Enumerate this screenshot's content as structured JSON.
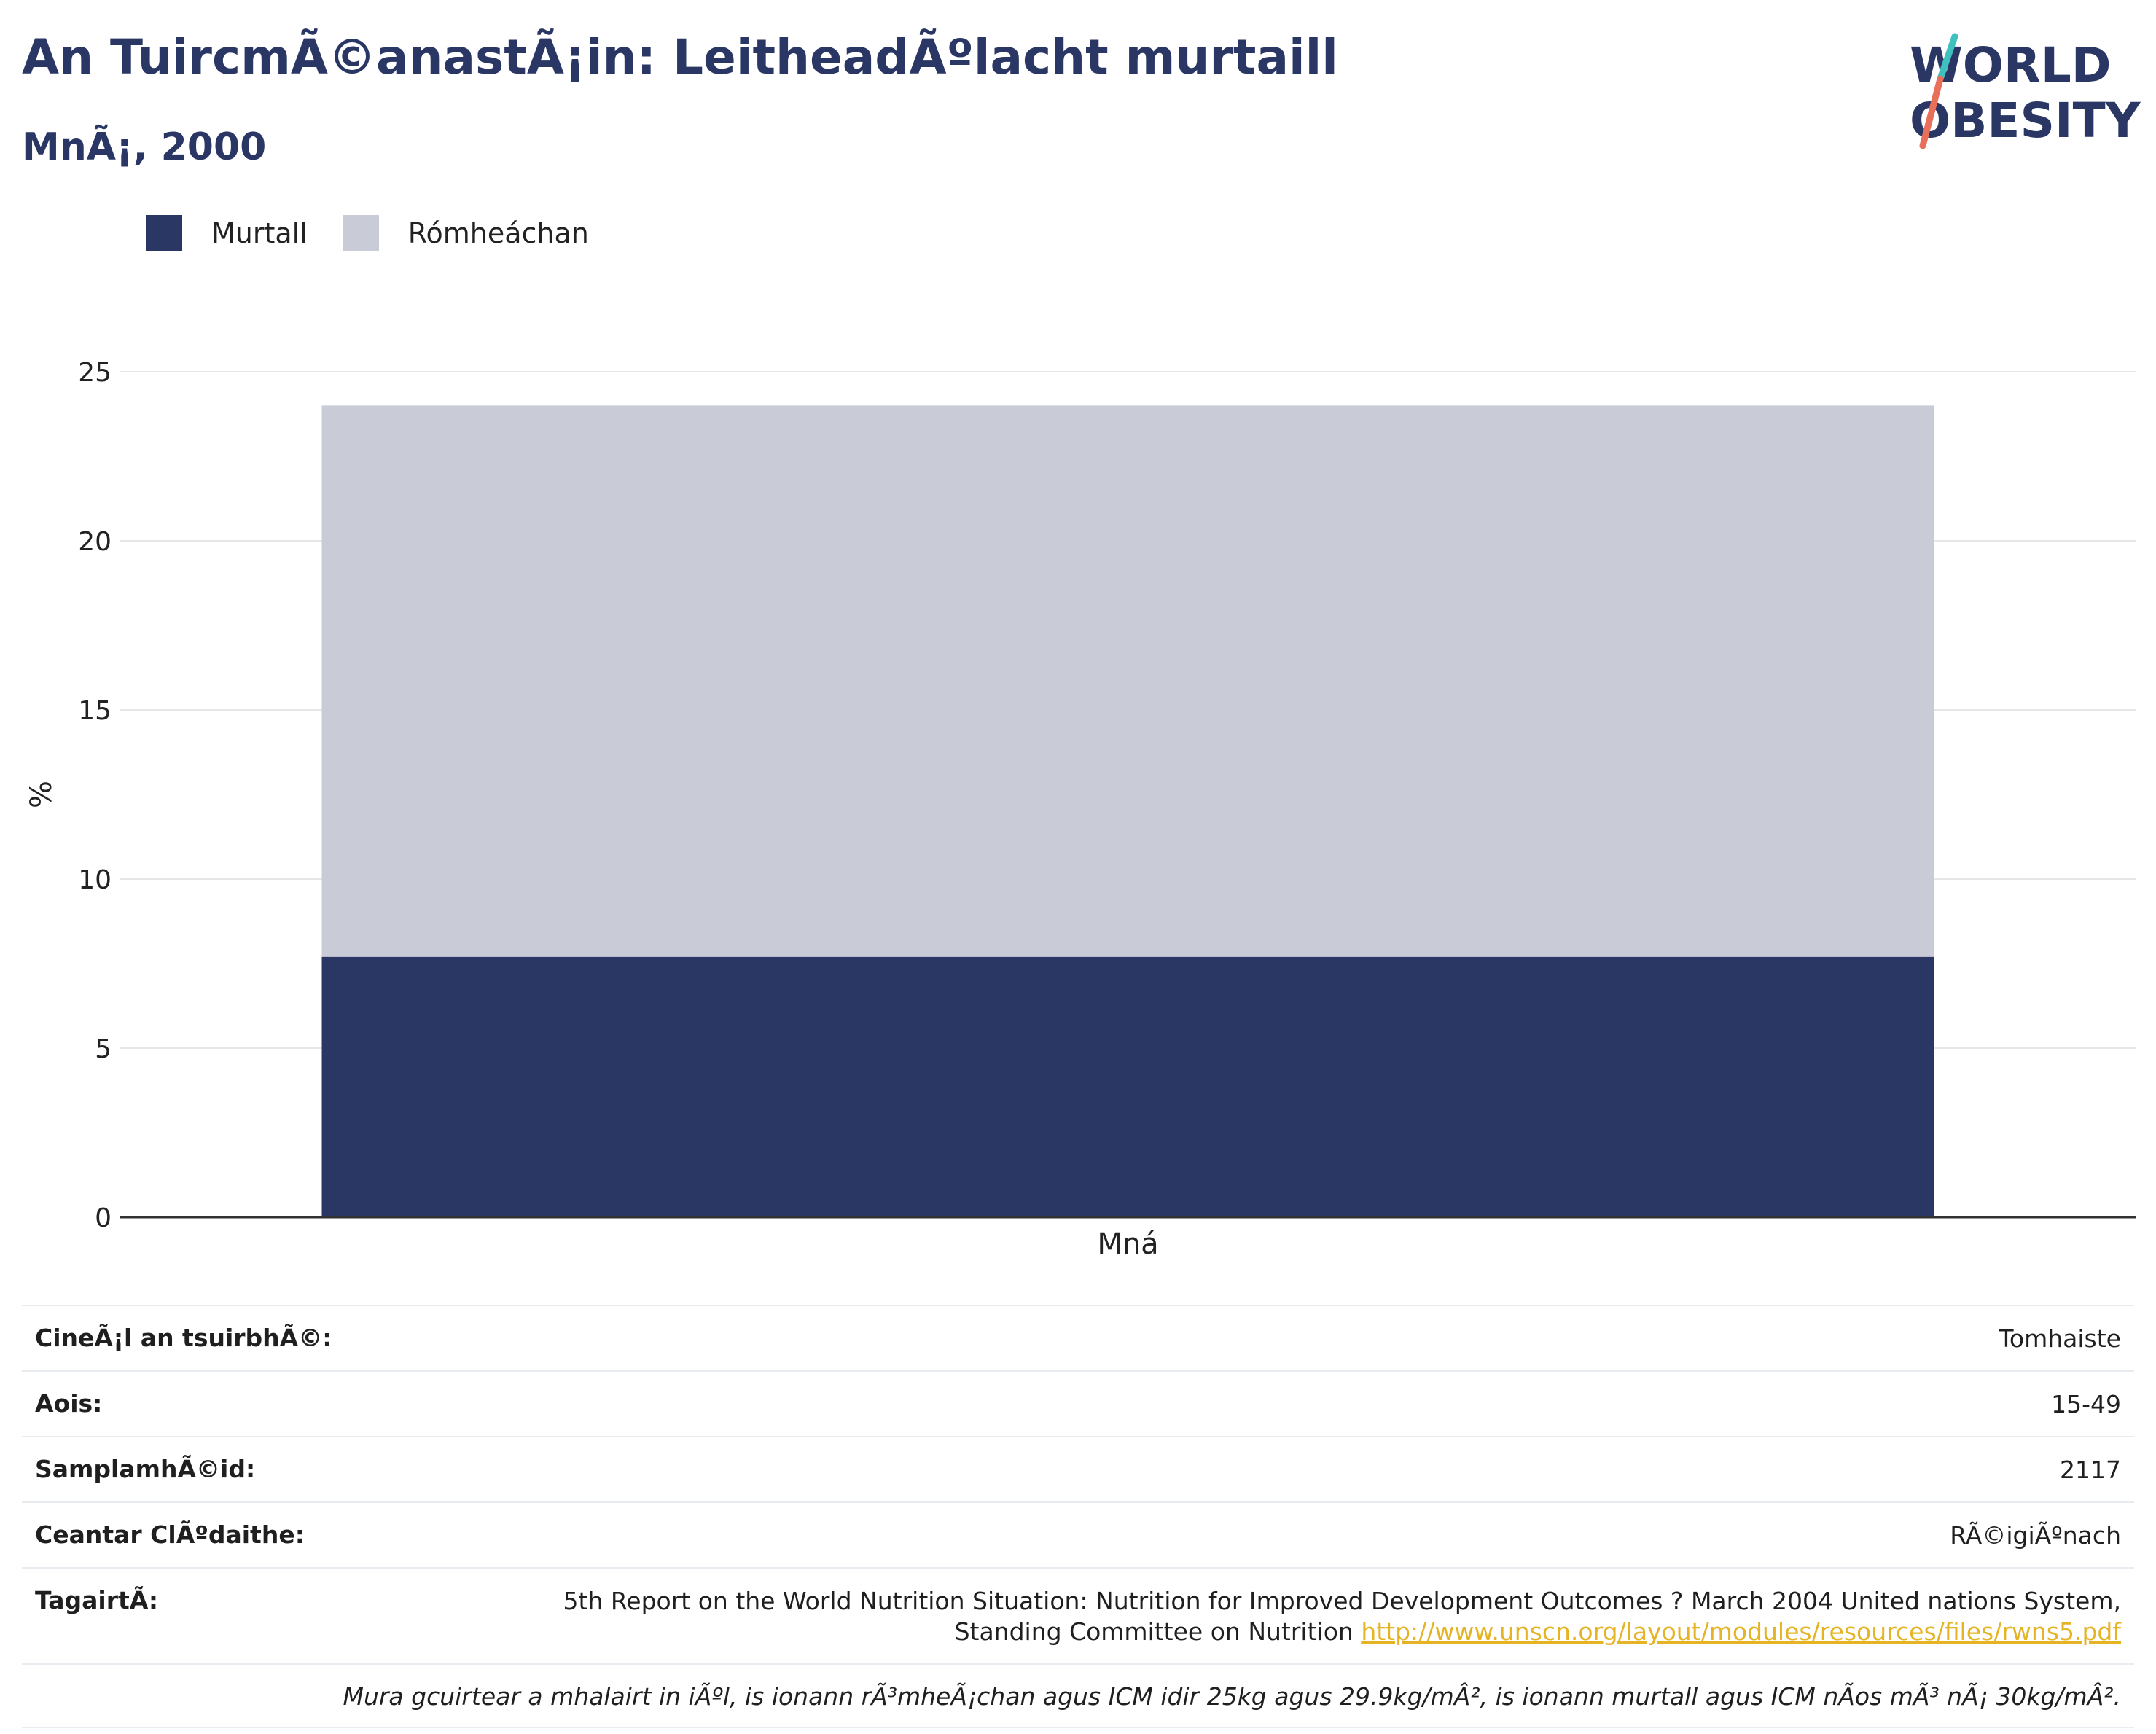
{
  "title": "An TuircmÃ©anastÃ¡in: LeitheadÃºlacht murtaill",
  "subtitle": "MnÃ¡, 2000",
  "logo": {
    "line1": "WORLD",
    "line2": "OBESITY"
  },
  "colors": {
    "obese": "#2a3764",
    "overweight": "#c9ccd7",
    "title": "#2a3764",
    "link": "#e5b425"
  },
  "chart_data": {
    "type": "bar",
    "stacked": true,
    "categories": [
      "Mná"
    ],
    "series": [
      {
        "name": "Murtall",
        "values": [
          7.7
        ]
      },
      {
        "name": "Rómheáchan",
        "values": [
          16.3
        ]
      }
    ],
    "ylabel": "%",
    "xlabel": "",
    "ylim": [
      0,
      25
    ],
    "yticks": [
      0,
      5,
      10,
      15,
      20,
      25
    ],
    "grid": true,
    "legend_position": "top-left"
  },
  "info": {
    "survey_type": {
      "label": "CineÃ¡l an tsuirbhÃ©:",
      "value": "Tomhaiste"
    },
    "age": {
      "label": "Aois:",
      "value": "15-49"
    },
    "sample": {
      "label": "SamplamhÃ©id:",
      "value": "2117"
    },
    "area": {
      "label": "Ceantar ClÃºdaithe:",
      "value": "RÃ©igiÃºnach"
    },
    "reference": {
      "label": "TagairtÃ:",
      "text": "5th Report on the World Nutrition Situation: Nutrition for Improved Development Outcomes ? March 2004 United nations System, Standing Committee on Nutrition",
      "link": "http://www.unscn.org/layout/modules/resources/files/rwns5.pdf"
    },
    "note": "Mura gcuirtear a mhalairt in iÃºl, is ionann rÃ³mheÃ¡chan agus ICM idir 25kg agus 29.9kg/mÂ², is ionann murtall agus ICM nÃos mÃ³ nÃ¡ 30kg/mÂ²."
  }
}
